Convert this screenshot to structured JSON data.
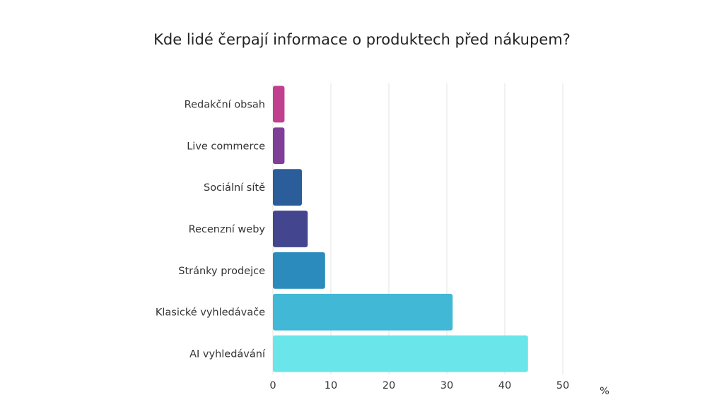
{
  "chart_data": {
    "type": "bar",
    "orientation": "horizontal",
    "title": "Kde lidé čerpají informace o produktech před nákupem?",
    "xlabel": "%",
    "categories": [
      "Redakční obsah",
      "Live commerce",
      "Sociální sítě",
      "Recenzní weby",
      "Stránky prodejce",
      "Klasické vyhledávače",
      "AI vyhledávání"
    ],
    "values": [
      2,
      2,
      5,
      6,
      9,
      31,
      44
    ],
    "colors": [
      "#c13f8f",
      "#7f3f98",
      "#2a5d9a",
      "#43458f",
      "#2b8bbd",
      "#40b8d6",
      "#6ae6ea"
    ],
    "xlim": [
      0,
      50
    ],
    "xticks": [
      0,
      10,
      20,
      30,
      40,
      50
    ],
    "grid": true,
    "legend": "none"
  }
}
